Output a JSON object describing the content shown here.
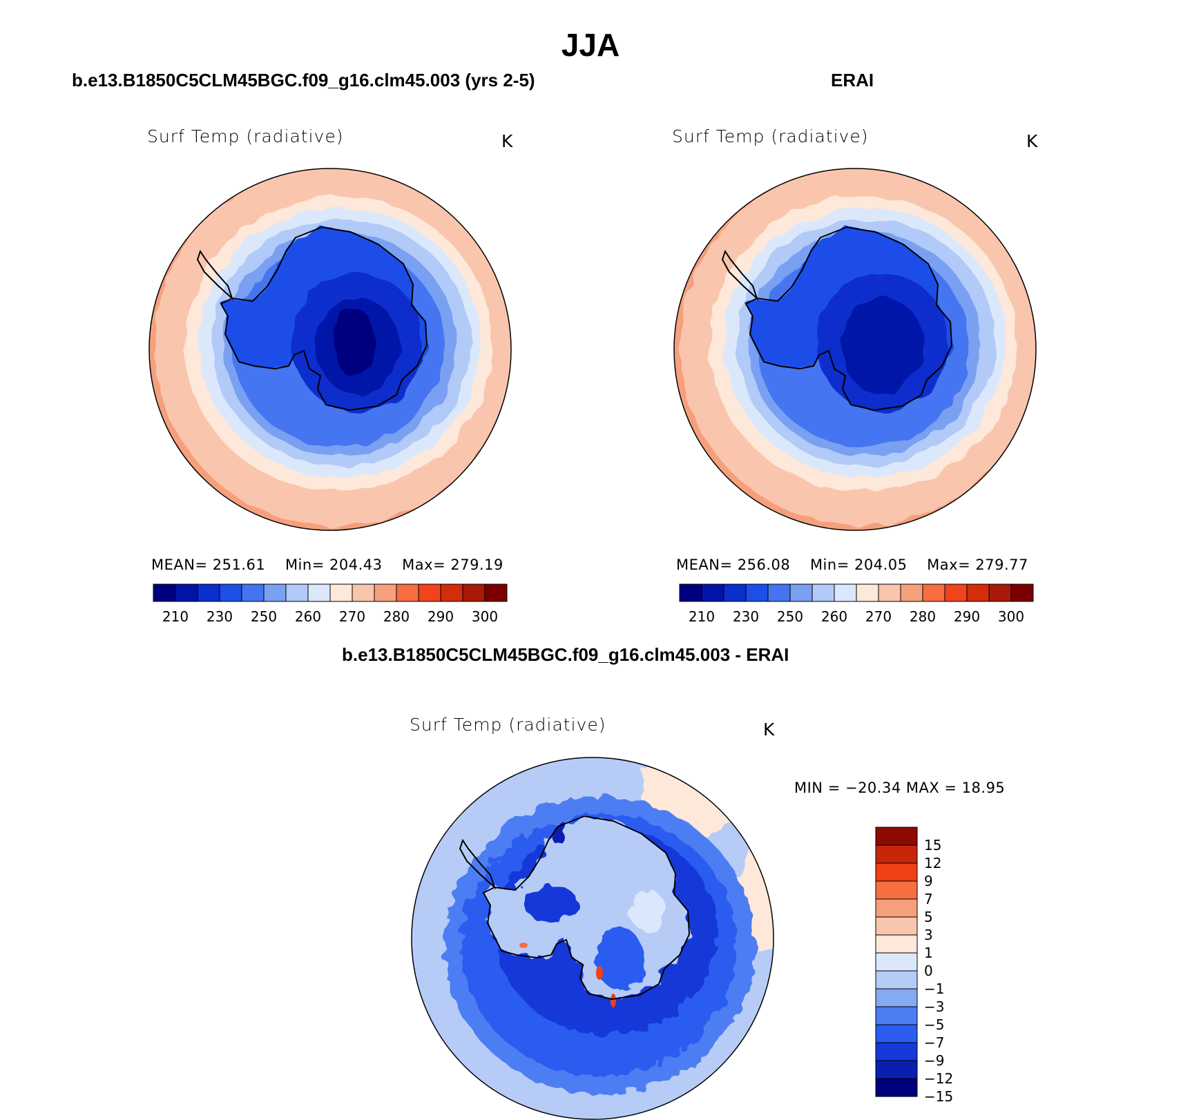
{
  "figure": {
    "title": "JJA",
    "panels": [
      {
        "subtitle": "b.e13.B1850C5CLM45BGC.f09_g16.clm45.003 (yrs 2-5)",
        "variable": "Surf Temp (radiative)",
        "units": "K",
        "stats": {
          "mean_label": "MEAN=",
          "mean": "251.61",
          "min_label": "Min=",
          "min": "204.43",
          "max_label": "Max=",
          "max": "279.19"
        }
      },
      {
        "subtitle": "ERAI",
        "variable": "Surf Temp (radiative)",
        "units": "K",
        "stats": {
          "mean_label": "MEAN=",
          "mean": "256.08",
          "min_label": "Min=",
          "min": "204.05",
          "max_label": "Max=",
          "max": "279.77"
        }
      },
      {
        "subtitle": "b.e13.B1850C5CLM45BGC.f09_g16.clm45.003 - ERAI",
        "variable": "Surf Temp (radiative)",
        "units": "K",
        "stats": {
          "text": "MIN = −20.34 MAX =   18.95"
        }
      }
    ]
  },
  "colorbars": {
    "absolute": {
      "colors": [
        "#00007f",
        "#0015a8",
        "#0a2fcc",
        "#1e4ee8",
        "#4574f0",
        "#7aa0f2",
        "#b2caf7",
        "#dbe8fb",
        "#fde8da",
        "#f9c5ad",
        "#f69f7c",
        "#f76e43",
        "#f1441c",
        "#d42d0b",
        "#a71a07",
        "#7a0000"
      ],
      "tick_labels": [
        "210",
        "230",
        "250",
        "260",
        "270",
        "280",
        "290",
        "300"
      ]
    },
    "difference": {
      "colors": [
        "#00007f",
        "#0a1fb0",
        "#1439d8",
        "#2a5cf0",
        "#4e7df2",
        "#86a9f4",
        "#b6ccf7",
        "#dbe8fb",
        "#fde8da",
        "#f9c5ad",
        "#f69f7c",
        "#f76e43",
        "#ef4018",
        "#c8260a",
        "#8c0a02"
      ],
      "tick_labels": [
        "15",
        "12",
        "9",
        "7",
        "5",
        "3",
        "1",
        "0",
        "−1",
        "−3",
        "−5",
        "−7",
        "−9",
        "−12",
        "−15"
      ]
    }
  },
  "chart_data": {
    "type": "heatmap",
    "title": "JJA",
    "maps": [
      {
        "name": "b.e13.B1850C5CLM45BGC.f09_g16.clm45.003 (yrs 2-5)",
        "variable": "Surf Temp (radiative)",
        "units": "K",
        "mean": 251.61,
        "min": 204.43,
        "max": 279.19,
        "levels": [
          210,
          220,
          230,
          240,
          250,
          255,
          260,
          265,
          270,
          275,
          280,
          285,
          290,
          295,
          300
        ]
      },
      {
        "name": "ERAI",
        "variable": "Surf Temp (radiative)",
        "units": "K",
        "mean": 256.08,
        "min": 204.05,
        "max": 279.77,
        "levels": [
          210,
          220,
          230,
          240,
          250,
          255,
          260,
          265,
          270,
          275,
          280,
          285,
          290,
          295,
          300
        ]
      },
      {
        "name": "b.e13.B1850C5CLM45BGC.f09_g16.clm45.003 - ERAI",
        "variable": "Surf Temp (radiative)",
        "units": "K",
        "min": -20.34,
        "max": 18.95,
        "levels": [
          -15,
          -12,
          -9,
          -7,
          -5,
          -3,
          -1,
          0,
          1,
          3,
          5,
          7,
          9,
          12,
          15
        ]
      }
    ]
  }
}
